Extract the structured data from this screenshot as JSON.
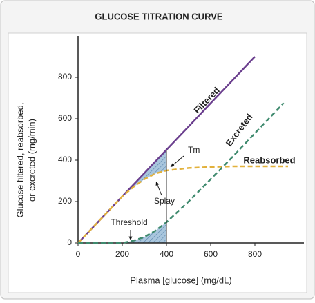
{
  "chart_data": {
    "type": "line",
    "title": "GLUCOSE TITRATION CURVE",
    "xlabel": "Plasma [glucose] (mg/dL)",
    "ylabel": [
      "Glucose filtered, reabsorbed,",
      "or excreted (mg/min)"
    ],
    "x": [
      0,
      100,
      200,
      250,
      300,
      350,
      400,
      500,
      600,
      700,
      800,
      900,
      930,
      950
    ],
    "series": [
      {
        "name": "Filtered",
        "color": "#6b3f8e",
        "dashed": false,
        "values": [
          0,
          112,
          225,
          281,
          337,
          394,
          450,
          562,
          675,
          787,
          900,
          null,
          null,
          null
        ]
      },
      {
        "name": "Reabsorbed",
        "color": "#e2b13c",
        "dashed": true,
        "values": [
          0,
          112,
          225,
          270,
          308,
          335,
          350,
          362,
          367,
          370,
          370,
          370,
          370,
          370
        ]
      },
      {
        "name": "Excreted",
        "color": "#3f8a6e",
        "dashed": true,
        "values": [
          0,
          0,
          0,
          11,
          29,
          59,
          100,
          200,
          308,
          417,
          530,
          642,
          676,
          null
        ]
      }
    ],
    "annotations": [
      "Tm",
      "Splay",
      "Threshold"
    ],
    "xlim": [
      0,
      1000
    ],
    "ylim": [
      0,
      1000
    ],
    "xticks": [
      0,
      200,
      400,
      600,
      800
    ],
    "yticks": [
      0,
      200,
      400,
      600,
      800
    ]
  }
}
